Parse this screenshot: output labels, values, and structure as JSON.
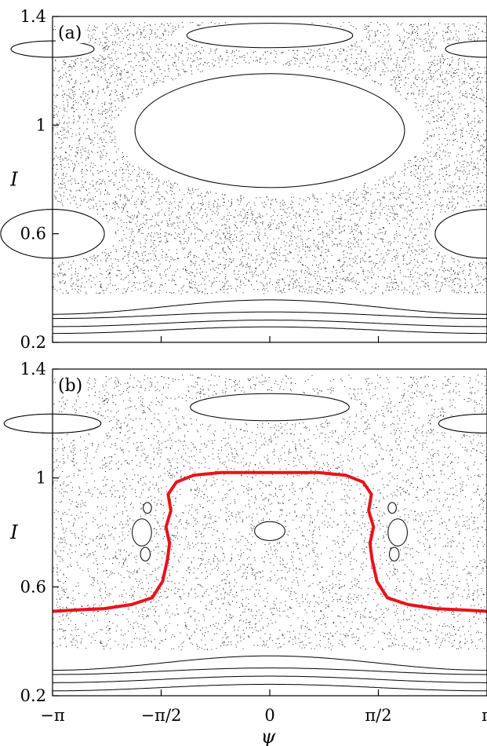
{
  "chart_data": [
    {
      "type": "scatter",
      "panel_label": "(a)",
      "ylabel": "I",
      "xlabel": "",
      "xlim": [
        -3.1416,
        3.1416
      ],
      "ylim": [
        0.2,
        1.4
      ],
      "yticks": [
        {
          "value": 1.4,
          "label": "1.4"
        },
        {
          "value": 1.0,
          "label": "1"
        },
        {
          "value": 0.6,
          "label": "0.6"
        },
        {
          "value": 0.2,
          "label": "0.2"
        }
      ],
      "xticks": [
        {
          "value": -3.1416,
          "label": ""
        },
        {
          "value": -1.5708,
          "label": ""
        },
        {
          "value": 0,
          "label": ""
        },
        {
          "value": 1.5708,
          "label": ""
        },
        {
          "value": 3.1416,
          "label": ""
        }
      ],
      "invariant_curves": [
        {
          "kind": "rotational",
          "I": [
            0.245,
            0.27,
            0.3,
            0.33
          ]
        },
        {
          "kind": "island",
          "center": [
            0,
            0.98
          ],
          "radii": [
            [
              0.35,
              0.025
            ],
            [
              1.1,
              0.08
            ],
            [
              1.55,
              0.15
            ],
            [
              1.95,
              0.21
            ]
          ]
        },
        {
          "kind": "island",
          "center": [
            3.1416,
            0.6
          ],
          "radii": [
            [
              0.3,
              0.02
            ],
            [
              0.55,
              0.05
            ],
            [
              0.75,
              0.09
            ]
          ]
        },
        {
          "kind": "island",
          "center": [
            -3.1416,
            0.6
          ],
          "radii": [
            [
              0.3,
              0.02
            ],
            [
              0.55,
              0.05
            ],
            [
              0.75,
              0.09
            ]
          ]
        },
        {
          "kind": "island",
          "center": [
            0,
            1.33
          ],
          "radii": [
            [
              0.1,
              0.005
            ],
            [
              0.55,
              0.02
            ],
            [
              0.9,
              0.035
            ],
            [
              1.2,
              0.045
            ]
          ]
        },
        {
          "kind": "island",
          "center": [
            3.1416,
            1.28
          ],
          "radii": [
            [
              0.3,
              0.015
            ],
            [
              0.6,
              0.03
            ]
          ]
        },
        {
          "kind": "island",
          "center": [
            -3.1416,
            1.28
          ],
          "radii": [
            [
              0.3,
              0.015
            ],
            [
              0.6,
              0.03
            ]
          ]
        }
      ],
      "chaotic_sea": {
        "I_range": [
          0.38,
          1.38
        ]
      }
    },
    {
      "type": "scatter",
      "panel_label": "(b)",
      "ylabel": "I",
      "xlabel": "ψ",
      "xlim": [
        -3.1416,
        3.1416
      ],
      "ylim": [
        0.2,
        1.4
      ],
      "yticks": [
        {
          "value": 1.4,
          "label": "1.4"
        },
        {
          "value": 1.0,
          "label": "1"
        },
        {
          "value": 0.6,
          "label": "0.6"
        },
        {
          "value": 0.2,
          "label": "0.2"
        }
      ],
      "xticks": [
        {
          "value": -3.1416,
          "label": "−π"
        },
        {
          "value": -1.5708,
          "label": "−π/2"
        },
        {
          "value": 0,
          "label": "0"
        },
        {
          "value": 1.5708,
          "label": "π/2"
        },
        {
          "value": 3.1416,
          "label": "π"
        }
      ],
      "highlight_curve": {
        "color": "#e8131b",
        "x": [
          -3.1416,
          -2.8,
          -2.4,
          -2.0,
          -1.7,
          -1.55,
          -1.48,
          -1.45,
          -1.5,
          -1.43,
          -1.47,
          -1.35,
          -1.1,
          -0.7,
          -0.3,
          0.0,
          0.3,
          0.7,
          1.1,
          1.35,
          1.47,
          1.43,
          1.5,
          1.45,
          1.48,
          1.55,
          1.7,
          2.0,
          2.4,
          2.8,
          3.1416
        ],
        "y": [
          0.51,
          0.515,
          0.52,
          0.535,
          0.56,
          0.62,
          0.7,
          0.76,
          0.82,
          0.88,
          0.94,
          0.985,
          1.01,
          1.02,
          1.02,
          1.02,
          1.02,
          1.02,
          1.01,
          0.985,
          0.94,
          0.88,
          0.82,
          0.76,
          0.7,
          0.62,
          0.56,
          0.535,
          0.52,
          0.515,
          0.51
        ]
      },
      "invariant_curves": [
        {
          "kind": "rotational",
          "I": [
            0.23,
            0.26,
            0.29,
            0.32
          ]
        },
        {
          "kind": "island",
          "center": [
            0,
            0.805
          ],
          "radii": [
            [
              0.22,
              0.035
            ]
          ]
        },
        {
          "kind": "island",
          "center": [
            0,
            1.26
          ],
          "radii": [
            [
              0.15,
              0.008
            ],
            [
              0.5,
              0.02
            ],
            [
              0.85,
              0.035
            ],
            [
              1.15,
              0.05
            ]
          ]
        },
        {
          "kind": "island",
          "center": [
            3.1416,
            1.2
          ],
          "radii": [
            [
              0.2,
              0.01
            ],
            [
              0.45,
              0.02
            ],
            [
              0.7,
              0.035
            ]
          ]
        },
        {
          "kind": "island",
          "center": [
            -3.1416,
            1.2
          ],
          "radii": [
            [
              0.2,
              0.01
            ],
            [
              0.45,
              0.02
            ],
            [
              0.7,
              0.035
            ]
          ]
        },
        {
          "kind": "island",
          "center": [
            -1.85,
            0.8
          ],
          "radii": [
            [
              0.08,
              0.03
            ],
            [
              0.14,
              0.05
            ]
          ]
        },
        {
          "kind": "island",
          "center": [
            1.85,
            0.8
          ],
          "radii": [
            [
              0.08,
              0.03
            ],
            [
              0.14,
              0.05
            ]
          ]
        },
        {
          "kind": "island",
          "center": [
            -1.8,
            0.72
          ],
          "radii": [
            [
              0.07,
              0.025
            ]
          ]
        },
        {
          "kind": "island",
          "center": [
            1.8,
            0.72
          ],
          "radii": [
            [
              0.07,
              0.025
            ]
          ]
        },
        {
          "kind": "island",
          "center": [
            -1.77,
            0.89
          ],
          "radii": [
            [
              0.06,
              0.02
            ]
          ]
        },
        {
          "kind": "island",
          "center": [
            1.77,
            0.89
          ],
          "radii": [
            [
              0.06,
              0.02
            ]
          ]
        }
      ],
      "chaotic_sea": {
        "I_range": [
          0.37,
          1.38
        ]
      }
    }
  ]
}
